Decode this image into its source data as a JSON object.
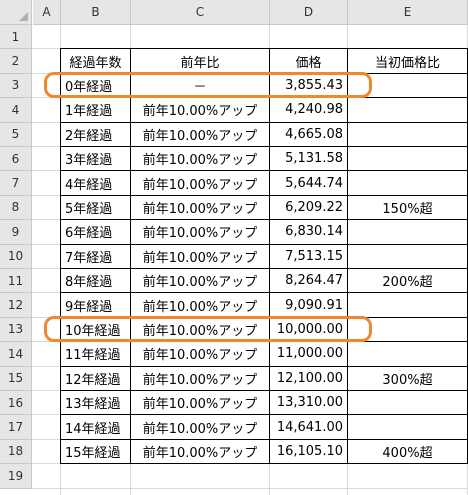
{
  "columns": [
    "A",
    "B",
    "C",
    "D",
    "E"
  ],
  "row_numbers": [
    "1",
    "2",
    "3",
    "4",
    "5",
    "6",
    "7",
    "8",
    "9",
    "10",
    "11",
    "12",
    "13",
    "14",
    "15",
    "16",
    "17",
    "18",
    "19"
  ],
  "table": {
    "headers": [
      "経過年数",
      "前年比",
      "価格",
      "当初価格比"
    ],
    "rows": [
      [
        "0年経過",
        "－",
        "3,855.43",
        ""
      ],
      [
        "1年経過",
        "前年10.00%アップ",
        "4,240.98",
        ""
      ],
      [
        "2年経過",
        "前年10.00%アップ",
        "4,665.08",
        ""
      ],
      [
        "3年経過",
        "前年10.00%アップ",
        "5,131.58",
        ""
      ],
      [
        "4年経過",
        "前年10.00%アップ",
        "5,644.74",
        ""
      ],
      [
        "5年経過",
        "前年10.00%アップ",
        "6,209.22",
        "150%超"
      ],
      [
        "6年経過",
        "前年10.00%アップ",
        "6,830.14",
        ""
      ],
      [
        "7年経過",
        "前年10.00%アップ",
        "7,513.15",
        ""
      ],
      [
        "8年経過",
        "前年10.00%アップ",
        "8,264.47",
        "200%超"
      ],
      [
        "9年経過",
        "前年10.00%アップ",
        "9,090.91",
        ""
      ],
      [
        "10年経過",
        "前年10.00%アップ",
        "10,000.00",
        ""
      ],
      [
        "11年経過",
        "前年10.00%アップ",
        "11,000.00",
        ""
      ],
      [
        "12年経過",
        "前年10.00%アップ",
        "12,100.00",
        "300%超"
      ],
      [
        "13年経過",
        "前年10.00%アップ",
        "13,310.00",
        ""
      ],
      [
        "14年経過",
        "前年10.00%アップ",
        "14,641.00",
        ""
      ],
      [
        "15年経過",
        "前年10.00%アップ",
        "16,105.10",
        "400%超"
      ]
    ]
  },
  "highlight_color": "#f0882d"
}
